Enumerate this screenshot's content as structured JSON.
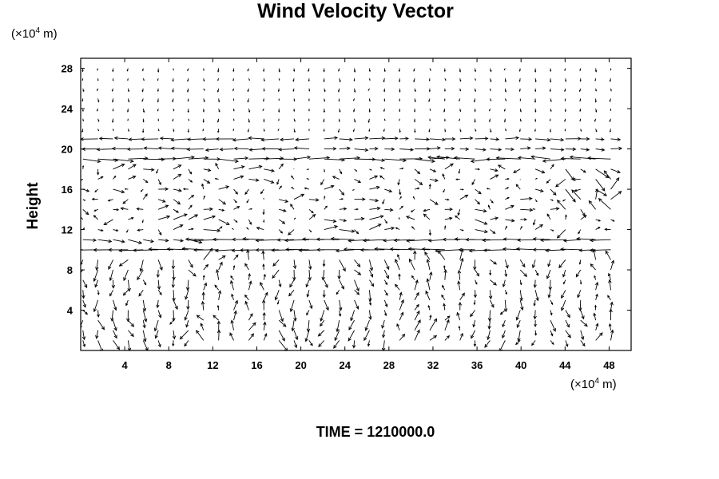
{
  "chart_data": {
    "type": "vector-field",
    "title": "Wind Velocity Vector",
    "ylabel": "Height",
    "xunit_prefix": "(×10",
    "xunit_exp": "4",
    "xunit_suffix": " m)",
    "yunit_prefix": "(×10",
    "yunit_exp": "4",
    "yunit_suffix": " m)",
    "xlim": [
      0,
      50
    ],
    "ylim": [
      0,
      29
    ],
    "xticks": [
      4,
      8,
      12,
      16,
      20,
      24,
      28,
      32,
      36,
      40,
      44,
      48
    ],
    "yticks": [
      4,
      8,
      12,
      16,
      20,
      24,
      28
    ],
    "grid": false,
    "vector_grid": {
      "nx": 36,
      "ny": 28,
      "x_spacing": 1.37,
      "y_spacing": 1.0
    },
    "features": [
      {
        "desc": "strong westward jet",
        "y": 20,
        "x_range": [
          3,
          21
        ]
      },
      {
        "desc": "strong jet",
        "y": 19,
        "x_range": [
          0,
          50
        ]
      },
      {
        "desc": "strong westward jet",
        "y": 11,
        "x_range": [
          11,
          49
        ]
      },
      {
        "desc": "strong westward jet",
        "y": 10,
        "x_range": [
          14,
          24
        ]
      }
    ],
    "footer_label": "TIME = 1210000.0"
  }
}
